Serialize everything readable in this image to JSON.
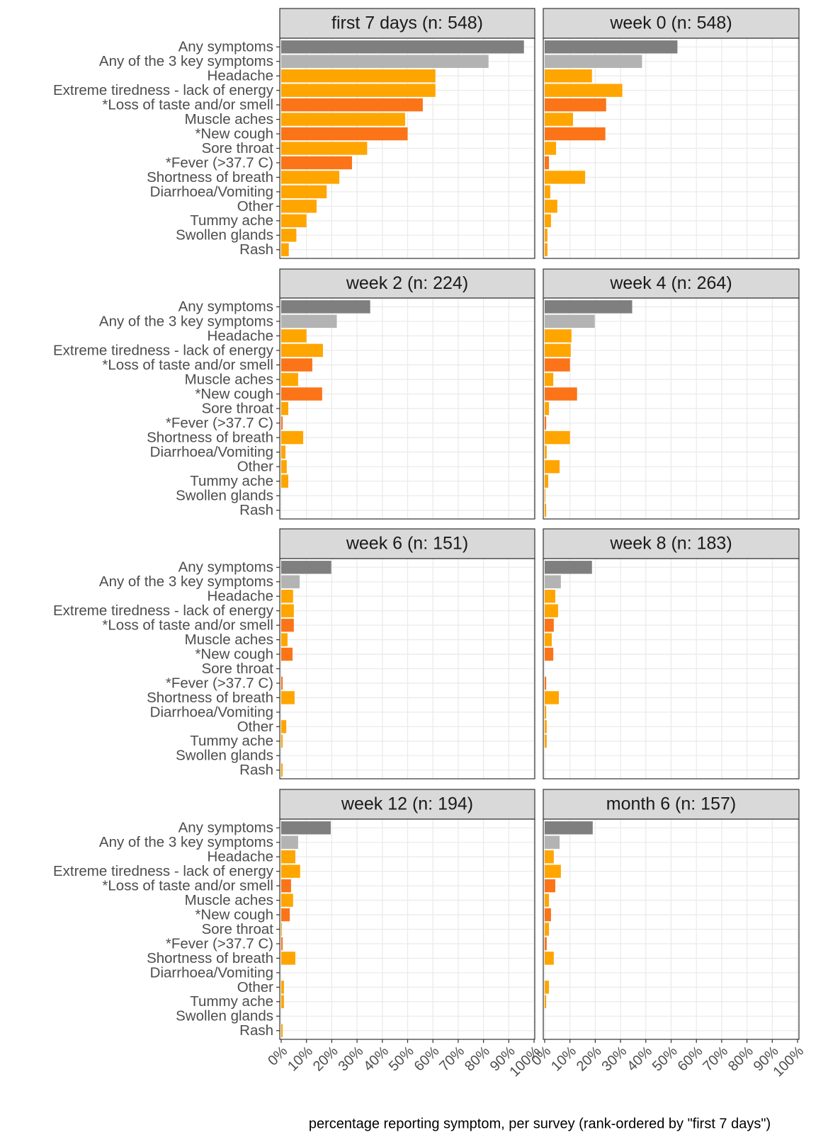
{
  "chart_data": {
    "type": "bar",
    "orientation": "horizontal",
    "xlabel": "percentage reporting symptom, per survey (rank-ordered by \"first 7 days\")",
    "categories": [
      "Any symptoms",
      "Any of the 3 key symptoms",
      "Headache",
      "Extreme tiredness - lack of energy",
      "*Loss of taste and/or smell",
      "Muscle aches",
      "*New cough",
      "Sore throat",
      "*Fever (>37.7 C)",
      "Shortness of breath",
      "Diarrhoea/Vomiting",
      "Other",
      "Tummy ache",
      "Swollen glands",
      "Rash"
    ],
    "colors": [
      "#7f7f7f",
      "#b3b3b3",
      "#ffa500",
      "#ffa500",
      "#fb7418",
      "#ffa500",
      "#fb7418",
      "#ffa500",
      "#fb7418",
      "#ffa500",
      "#ffa500",
      "#ffa500",
      "#ffa500",
      "#ffa500",
      "#ffa500"
    ],
    "xlim": [
      0,
      100
    ],
    "xticks": [
      {
        "value": 0,
        "label": "0%"
      },
      {
        "value": 10,
        "label": "10%"
      },
      {
        "value": 20,
        "label": "20%"
      },
      {
        "value": 30,
        "label": "30%"
      },
      {
        "value": 40,
        "label": "40%"
      },
      {
        "value": 50,
        "label": "50%"
      },
      {
        "value": 60,
        "label": "60%"
      },
      {
        "value": 70,
        "label": "70%"
      },
      {
        "value": 80,
        "label": "80%"
      },
      {
        "value": 90,
        "label": "90%"
      },
      {
        "value": 100,
        "label": "100%"
      }
    ],
    "grid": true,
    "facets": [
      {
        "title": "first 7 days (n: 548)",
        "values": [
          96,
          82,
          61,
          61,
          56,
          49,
          50,
          34,
          28,
          23,
          18,
          14,
          10,
          6,
          3
        ]
      },
      {
        "title": "week 0 (n: 548)",
        "values": [
          52.5,
          38.5,
          18.7,
          30.7,
          24.3,
          11.2,
          24,
          4.5,
          1.7,
          16,
          2.2,
          5,
          2.5,
          1.1,
          1.1
        ]
      },
      {
        "title": "week 2 (n: 224)",
        "values": [
          35.2,
          22,
          10,
          16.5,
          12.3,
          6.7,
          16.2,
          2.8,
          0.6,
          8.7,
          1.7,
          2.2,
          2.8,
          0,
          0
        ]
      },
      {
        "title": "week 4 (n: 264)",
        "values": [
          34.6,
          19.8,
          10.6,
          10.3,
          10,
          3.4,
          12.8,
          1.7,
          0.6,
          10,
          0.8,
          5.9,
          1.4,
          0.3,
          0.6
        ]
      },
      {
        "title": "week 6 (n: 151)",
        "values": [
          19.8,
          7.3,
          4.7,
          5,
          5,
          2.5,
          4.5,
          0,
          0.6,
          5.3,
          0,
          2,
          0.6,
          0,
          0.6
        ]
      },
      {
        "title": "week 8 (n: 183)",
        "values": [
          18.7,
          6.4,
          4.2,
          5.3,
          3.6,
          2.8,
          3.4,
          0,
          0.6,
          5.6,
          0.6,
          0.8,
          0.8,
          0,
          0
        ]
      },
      {
        "title": "week 12 (n: 194)",
        "values": [
          19.6,
          6.7,
          5.6,
          7.5,
          3.9,
          4.7,
          3.4,
          0.3,
          0.6,
          5.6,
          0,
          1.1,
          1.1,
          0,
          0.6
        ]
      },
      {
        "title": "month 6 (n: 157)",
        "values": [
          19,
          5.9,
          3.6,
          6.4,
          4.2,
          1.7,
          2.5,
          1.7,
          0.8,
          3.6,
          0,
          1.7,
          0.6,
          0,
          0
        ]
      }
    ]
  }
}
